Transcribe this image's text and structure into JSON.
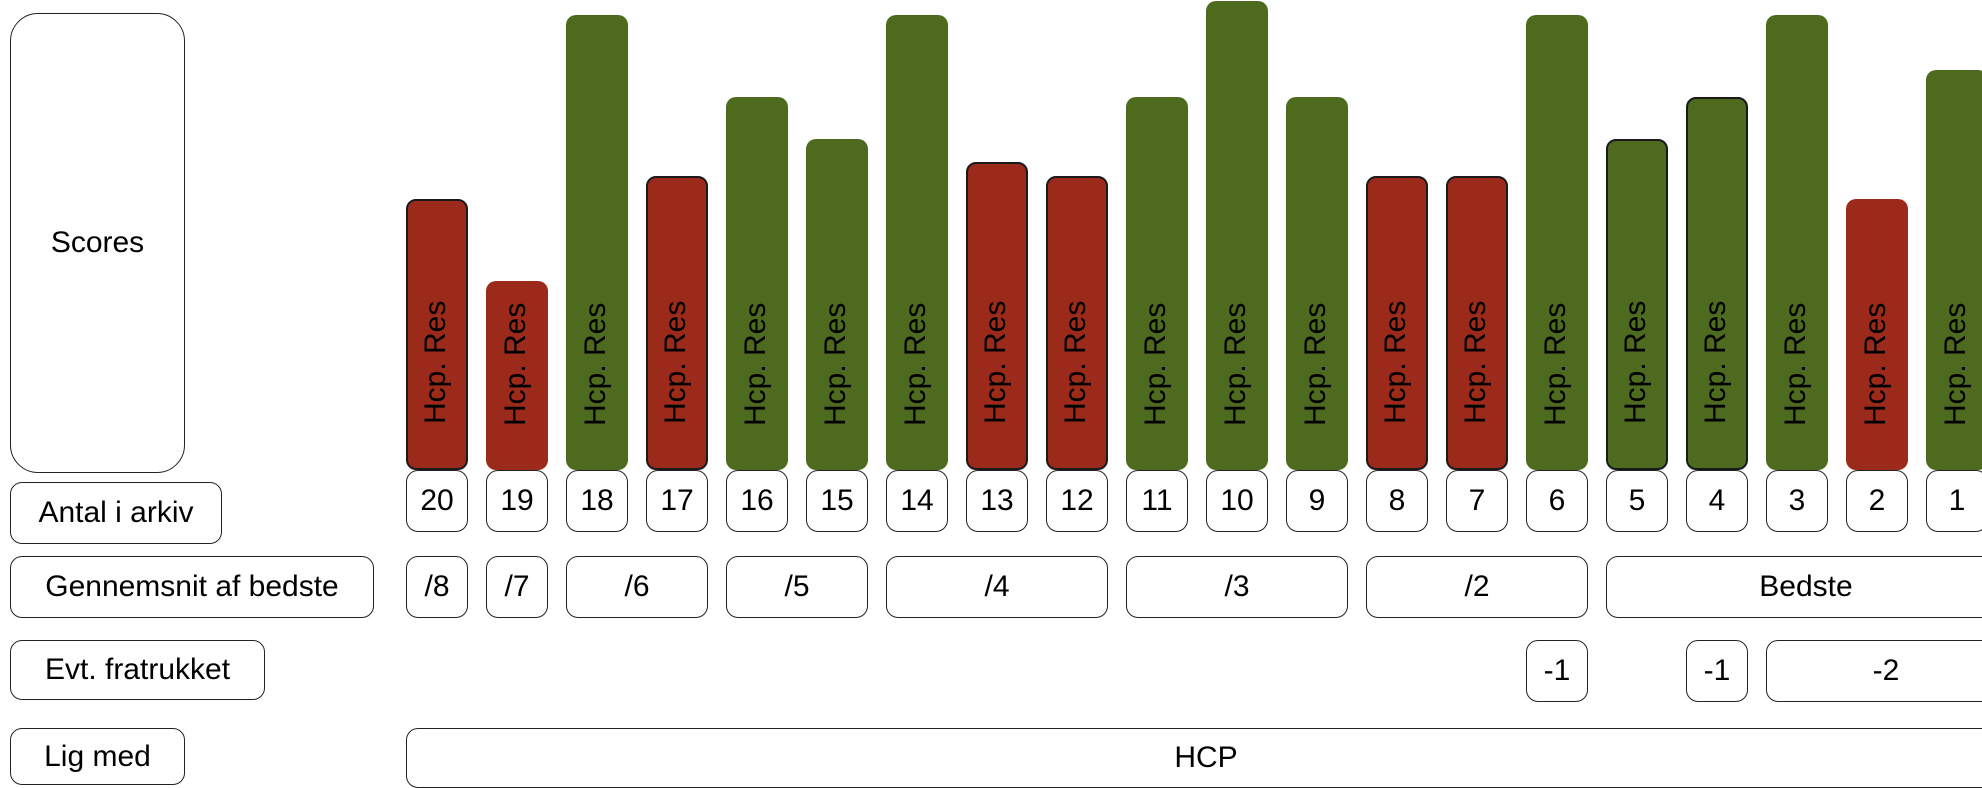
{
  "row_labels": {
    "scores": "Scores",
    "antal": "Antal i arkiv",
    "gennemsnit": "Gennemsnit af bedste",
    "fratrukket": "Evt. fratrukket",
    "lig_med": "Lig med"
  },
  "bar_label": "Hcp. Res",
  "bars": [
    {
      "number": "20",
      "color": "red",
      "outlined": true,
      "height": 0.59
    },
    {
      "number": "19",
      "color": "red",
      "outlined": false,
      "height": 0.41
    },
    {
      "number": "18",
      "color": "green",
      "outlined": false,
      "height": 0.99
    },
    {
      "number": "17",
      "color": "red",
      "outlined": true,
      "height": 0.64
    },
    {
      "number": "16",
      "color": "green",
      "outlined": false,
      "height": 0.81
    },
    {
      "number": "15",
      "color": "green",
      "outlined": false,
      "height": 0.72
    },
    {
      "number": "14",
      "color": "green",
      "outlined": false,
      "height": 0.99
    },
    {
      "number": "13",
      "color": "red",
      "outlined": true,
      "height": 0.67
    },
    {
      "number": "12",
      "color": "red",
      "outlined": true,
      "height": 0.64
    },
    {
      "number": "11",
      "color": "green",
      "outlined": false,
      "height": 0.81
    },
    {
      "number": "10",
      "color": "green",
      "outlined": false,
      "height": 1.02
    },
    {
      "number": "9",
      "color": "green",
      "outlined": false,
      "height": 0.81
    },
    {
      "number": "8",
      "color": "red",
      "outlined": true,
      "height": 0.64
    },
    {
      "number": "7",
      "color": "red",
      "outlined": true,
      "height": 0.64
    },
    {
      "number": "6",
      "color": "green",
      "outlined": false,
      "height": 0.99
    },
    {
      "number": "5",
      "color": "green",
      "outlined": true,
      "height": 0.72
    },
    {
      "number": "4",
      "color": "green",
      "outlined": true,
      "height": 0.81
    },
    {
      "number": "3",
      "color": "green",
      "outlined": false,
      "height": 0.99
    },
    {
      "number": "2",
      "color": "red",
      "outlined": false,
      "height": 0.59
    },
    {
      "number": "1",
      "color": "green",
      "outlined": false,
      "height": 0.87
    }
  ],
  "gennemsnit_groups": [
    "/8",
    "/7",
    "/6",
    "/5",
    "/4",
    "/3",
    "/2",
    "Bedste"
  ],
  "fratrukket_values": [
    "-1",
    "-1",
    "-2"
  ],
  "lig_med_value": "HCP",
  "colors": {
    "red": "#9b2a1a",
    "green": "#4e6a1f"
  }
}
